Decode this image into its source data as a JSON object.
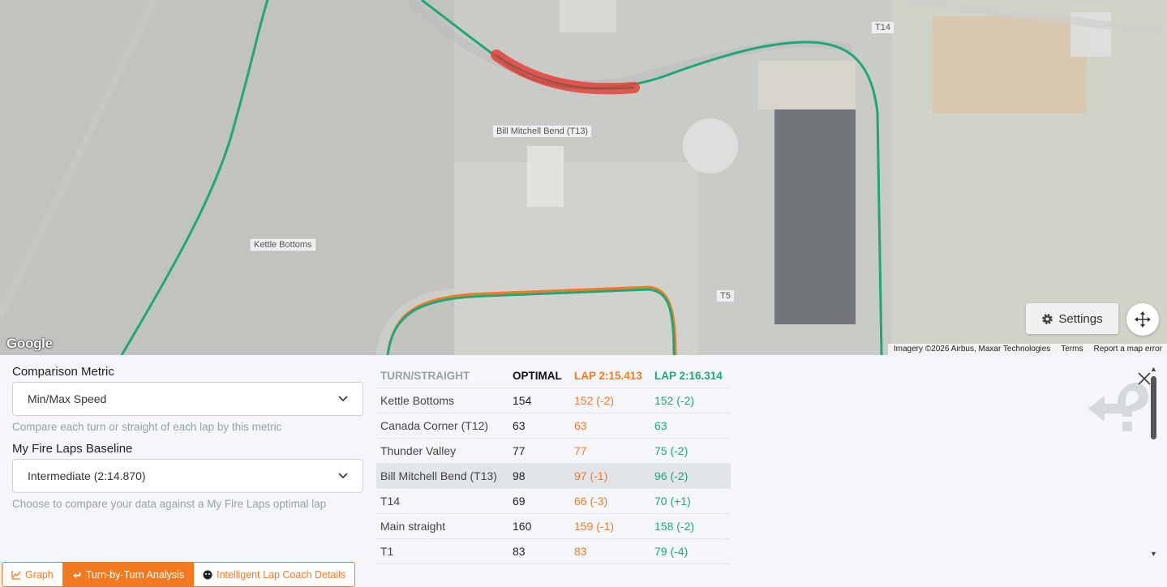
{
  "map": {
    "labels": {
      "t14": "T14",
      "bill_mitchell": "Bill Mitchell Bend (T13)",
      "kettle": "Kettle Bottoms",
      "t5": "T5"
    },
    "google_logo": "Google",
    "attribution": {
      "imagery": "Imagery ©2026 Airbus, Maxar Technologies",
      "terms": "Terms",
      "report": "Report a map error"
    },
    "settings_label": "Settings",
    "icons": {
      "settings": "gear-icon",
      "recenter": "recenter-icon"
    }
  },
  "controls": {
    "metric_label": "Comparison Metric",
    "metric_value": "Min/Max Speed",
    "metric_hint": "Compare each turn or straight of each lap by this metric",
    "baseline_label": "My Fire Laps Baseline",
    "baseline_value": "Intermediate (2:14.870)",
    "baseline_hint": "Choose to compare your data against a My Fire Laps optimal lap"
  },
  "table": {
    "headers": {
      "turn": "TURN/STRAIGHT",
      "optimal": "OPTIMAL",
      "lap_a": "LAP 2:15.413",
      "lap_b": "LAP 2:16.314"
    },
    "rows": [
      {
        "name": "Kettle Bottoms",
        "optimal": "154",
        "lap_a": "152 (-2)",
        "lap_b": "152 (-2)"
      },
      {
        "name": "Canada Corner (T12)",
        "optimal": "63",
        "lap_a": "63",
        "lap_b": "63"
      },
      {
        "name": "Thunder Valley",
        "optimal": "77",
        "lap_a": "77",
        "lap_b": "75 (-2)"
      },
      {
        "name": "Bill Mitchell Bend (T13)",
        "optimal": "98",
        "lap_a": "97 (-1)",
        "lap_b": "96 (-2)"
      },
      {
        "name": "T14",
        "optimal": "69",
        "lap_a": "66 (-3)",
        "lap_b": "70 (+1)"
      },
      {
        "name": "Main straight",
        "optimal": "160",
        "lap_a": "159 (-1)",
        "lap_b": "158 (-2)"
      },
      {
        "name": "T1",
        "optimal": "83",
        "lap_a": "83",
        "lap_b": "79 (-4)"
      }
    ],
    "highlighted_row": "Bill Mitchell Bend (T13)"
  },
  "tabs": [
    {
      "label": "Graph",
      "icon": "chart-icon",
      "active": false
    },
    {
      "label": "Turn-by-Turn Analysis",
      "icon": "turn-icon",
      "active": true
    },
    {
      "label": "Intelligent Lap Coach Details",
      "icon": "coach-icon",
      "active": false
    }
  ],
  "colors": {
    "accent_orange": "#f47a20",
    "accent_green": "#1fa77a",
    "track_highlight": "#e8403a"
  }
}
